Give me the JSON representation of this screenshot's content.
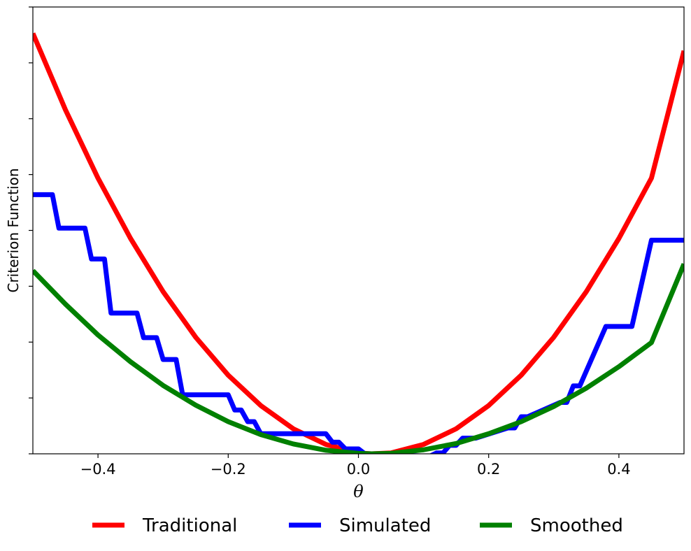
{
  "chart_data": {
    "type": "line",
    "title": "",
    "xlabel": "θ",
    "ylabel": "Criterion Function",
    "xlim": [
      -0.5,
      0.5
    ],
    "ylim": [
      0,
      1.0
    ],
    "x_ticks": [
      -0.4,
      -0.2,
      0.0,
      0.2,
      0.4
    ],
    "x_tick_labels": [
      "−0.4",
      "−0.2",
      "0.0",
      "0.2",
      "0.4"
    ],
    "y_ticks": [
      0,
      0.125,
      0.25,
      0.375,
      0.5,
      0.625,
      0.75,
      0.875,
      1.0
    ],
    "y_tick_labels_shown": false,
    "grid": false,
    "legend_position": "bottom-center",
    "series": [
      {
        "name": "Traditional",
        "color": "#ff0000",
        "x": [
          -0.5,
          -0.45,
          -0.4,
          -0.35,
          -0.3,
          -0.25,
          -0.2,
          -0.15,
          -0.1,
          -0.05,
          0.0,
          0.02,
          0.05,
          0.1,
          0.15,
          0.2,
          0.25,
          0.3,
          0.35,
          0.4,
          0.45,
          0.5
        ],
        "values": [
          0.941,
          0.77,
          0.617,
          0.482,
          0.363,
          0.261,
          0.176,
          0.108,
          0.056,
          0.021,
          0.002,
          0.0,
          0.002,
          0.021,
          0.056,
          0.108,
          0.176,
          0.261,
          0.363,
          0.482,
          0.617,
          0.902
        ]
      },
      {
        "name": "Simulated",
        "color": "#0000ff",
        "x": [
          -0.5,
          -0.47,
          -0.46,
          -0.42,
          -0.41,
          -0.39,
          -0.38,
          -0.34,
          -0.33,
          -0.31,
          -0.3,
          -0.28,
          -0.27,
          -0.2,
          -0.19,
          -0.18,
          -0.17,
          -0.16,
          -0.15,
          -0.05,
          -0.04,
          -0.03,
          -0.02,
          0.0,
          0.01,
          0.02,
          0.1,
          0.11,
          0.12,
          0.13,
          0.14,
          0.15,
          0.16,
          0.18,
          0.23,
          0.24,
          0.25,
          0.26,
          0.31,
          0.32,
          0.33,
          0.34,
          0.38,
          0.42,
          0.45,
          0.5
        ],
        "values": [
          0.58,
          0.58,
          0.505,
          0.505,
          0.436,
          0.436,
          0.315,
          0.315,
          0.26,
          0.26,
          0.211,
          0.211,
          0.132,
          0.132,
          0.098,
          0.098,
          0.072,
          0.072,
          0.045,
          0.045,
          0.026,
          0.026,
          0.011,
          0.011,
          0.0,
          0.0,
          -0.005,
          -0.005,
          0.002,
          0.002,
          0.019,
          0.019,
          0.035,
          0.035,
          0.058,
          0.058,
          0.083,
          0.083,
          0.115,
          0.115,
          0.152,
          0.152,
          0.285,
          0.285,
          0.478,
          0.478
        ]
      },
      {
        "name": "Smoothed",
        "color": "#008000",
        "x": [
          -0.5,
          -0.45,
          -0.4,
          -0.35,
          -0.3,
          -0.25,
          -0.2,
          -0.15,
          -0.1,
          -0.05,
          0.0,
          0.02,
          0.05,
          0.1,
          0.15,
          0.2,
          0.25,
          0.3,
          0.35,
          0.4,
          0.45,
          0.5
        ],
        "values": [
          0.41,
          0.335,
          0.266,
          0.206,
          0.153,
          0.109,
          0.072,
          0.043,
          0.022,
          0.008,
          0.001,
          0.0,
          0.001,
          0.009,
          0.023,
          0.045,
          0.072,
          0.106,
          0.147,
          0.195,
          0.249,
          0.425
        ]
      }
    ]
  },
  "legend": {
    "items": [
      {
        "label": "Traditional",
        "color": "#ff0000"
      },
      {
        "label": "Simulated",
        "color": "#0000ff"
      },
      {
        "label": "Smoothed",
        "color": "#008000"
      }
    ]
  },
  "labels": {
    "xlabel": "θ",
    "ylabel": "Criterion Function"
  }
}
